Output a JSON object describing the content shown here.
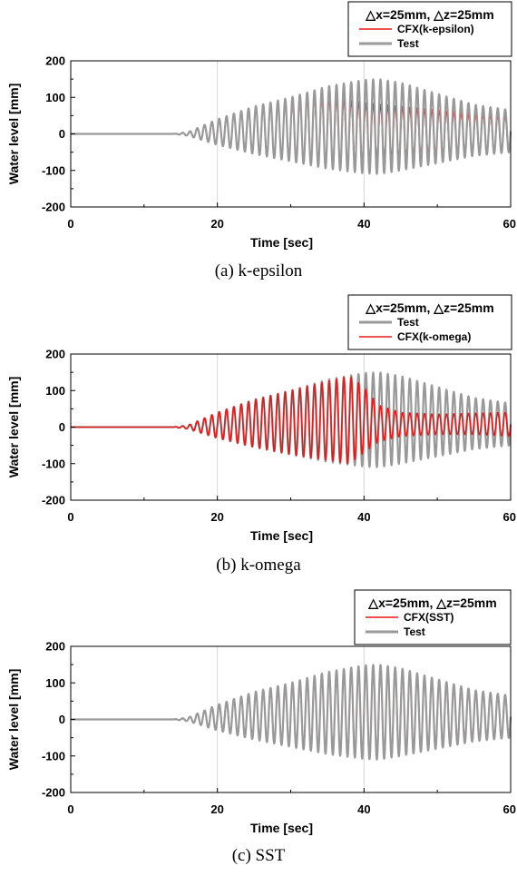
{
  "chart_data": [
    {
      "type": "line",
      "legend": {
        "title": "△x=25mm, △z=25mm",
        "entries": [
          "CFX(k-epsilon)",
          "Test"
        ],
        "placement": "top-right"
      },
      "xlabel": "Time [sec]",
      "ylabel": "Water level [mm]",
      "xlim": [
        0,
        60
      ],
      "ylim": [
        -200,
        200
      ],
      "xticks": [
        "0",
        "20",
        "40",
        "60"
      ],
      "yticks": [
        "200",
        "100",
        "0",
        "-100",
        "-200"
      ],
      "grid": "vertical",
      "caption": "(a) k-epsilon",
      "wave_period_s": 1.0,
      "series": [
        {
          "name": "CFX(k-epsilon)",
          "color": "#e31b1b",
          "envelope_t": [
            0,
            14,
            16,
            20,
            25,
            30,
            33,
            36,
            40,
            45,
            50,
            55,
            60
          ],
          "envelope_upper": [
            0,
            0,
            5,
            40,
            70,
            90,
            98,
            100,
            85,
            75,
            65,
            55,
            50
          ],
          "envelope_lower": [
            0,
            0,
            -5,
            -30,
            -50,
            -70,
            -80,
            -85,
            -70,
            -60,
            -55,
            -50,
            -45
          ]
        },
        {
          "name": "Test",
          "color": "#999999",
          "envelope_t": [
            0,
            14,
            16,
            20,
            25,
            30,
            35,
            40,
            42,
            45,
            50,
            55,
            60
          ],
          "envelope_upper": [
            0,
            0,
            5,
            40,
            75,
            100,
            130,
            148,
            150,
            140,
            110,
            80,
            65
          ],
          "envelope_lower": [
            0,
            0,
            -5,
            -30,
            -55,
            -75,
            -95,
            -108,
            -110,
            -100,
            -80,
            -60,
            -50
          ]
        }
      ]
    },
    {
      "type": "line",
      "legend": {
        "title": "△x=25mm, △z=25mm",
        "entries": [
          "Test",
          "CFX(k-omega)"
        ],
        "placement": "top-right"
      },
      "xlabel": "Time [sec]",
      "ylabel": "Water level [mm]",
      "xlim": [
        0,
        60
      ],
      "ylim": [
        -200,
        200
      ],
      "xticks": [
        "0",
        "20",
        "40",
        "60"
      ],
      "yticks": [
        "200",
        "100",
        "0",
        "-100",
        "-200"
      ],
      "grid": "vertical",
      "caption": "(b) k-omega",
      "wave_period_s": 1.0,
      "series": [
        {
          "name": "Test",
          "color": "#999999",
          "envelope_t": [
            0,
            14,
            16,
            20,
            25,
            30,
            35,
            40,
            42,
            45,
            50,
            55,
            60
          ],
          "envelope_upper": [
            0,
            0,
            5,
            40,
            75,
            100,
            130,
            148,
            150,
            140,
            110,
            80,
            65
          ],
          "envelope_lower": [
            0,
            0,
            -5,
            -30,
            -55,
            -75,
            -95,
            -108,
            -110,
            -100,
            -80,
            -60,
            -50
          ]
        },
        {
          "name": "CFX(k-omega)",
          "color": "#e31b1b",
          "envelope_t": [
            0,
            14,
            16,
            20,
            25,
            30,
            35,
            38,
            40,
            42,
            45,
            50,
            55,
            60
          ],
          "envelope_upper": [
            0,
            0,
            5,
            40,
            75,
            100,
            125,
            140,
            110,
            60,
            40,
            35,
            38,
            40
          ],
          "envelope_lower": [
            0,
            0,
            -5,
            -30,
            -55,
            -75,
            -90,
            -100,
            -70,
            -40,
            -25,
            -20,
            -20,
            -25
          ]
        }
      ]
    },
    {
      "type": "line",
      "legend": {
        "title": "△x=25mm, △z=25mm",
        "entries": [
          "CFX(SST)",
          "Test"
        ],
        "placement": "top-right"
      },
      "xlabel": "Time [sec]",
      "ylabel": "Water level [mm]",
      "xlim": [
        0,
        60
      ],
      "ylim": [
        -200,
        200
      ],
      "xticks": [
        "0",
        "20",
        "40",
        "60"
      ],
      "yticks": [
        "200",
        "100",
        "0",
        "-100",
        "-200"
      ],
      "grid": "vertical",
      "caption": "(c) SST",
      "wave_period_s": 1.0,
      "series": [
        {
          "name": "CFX(SST)",
          "color": "#e31b1b",
          "envelope_t": [
            0,
            14,
            16,
            20,
            25,
            30,
            35,
            40,
            42,
            45,
            50,
            55,
            60
          ],
          "envelope_upper": [
            0,
            0,
            5,
            40,
            75,
            100,
            125,
            140,
            142,
            135,
            110,
            80,
            62
          ],
          "envelope_lower": [
            0,
            0,
            -5,
            -30,
            -55,
            -75,
            -92,
            -105,
            -105,
            -98,
            -80,
            -60,
            -48
          ]
        },
        {
          "name": "Test",
          "color": "#999999",
          "envelope_t": [
            0,
            14,
            16,
            20,
            25,
            30,
            35,
            40,
            42,
            45,
            50,
            55,
            60
          ],
          "envelope_upper": [
            0,
            0,
            5,
            40,
            75,
            100,
            130,
            148,
            150,
            140,
            110,
            80,
            65
          ],
          "envelope_lower": [
            0,
            0,
            -5,
            -30,
            -55,
            -75,
            -95,
            -108,
            -110,
            -100,
            -80,
            -60,
            -50
          ]
        }
      ]
    }
  ]
}
